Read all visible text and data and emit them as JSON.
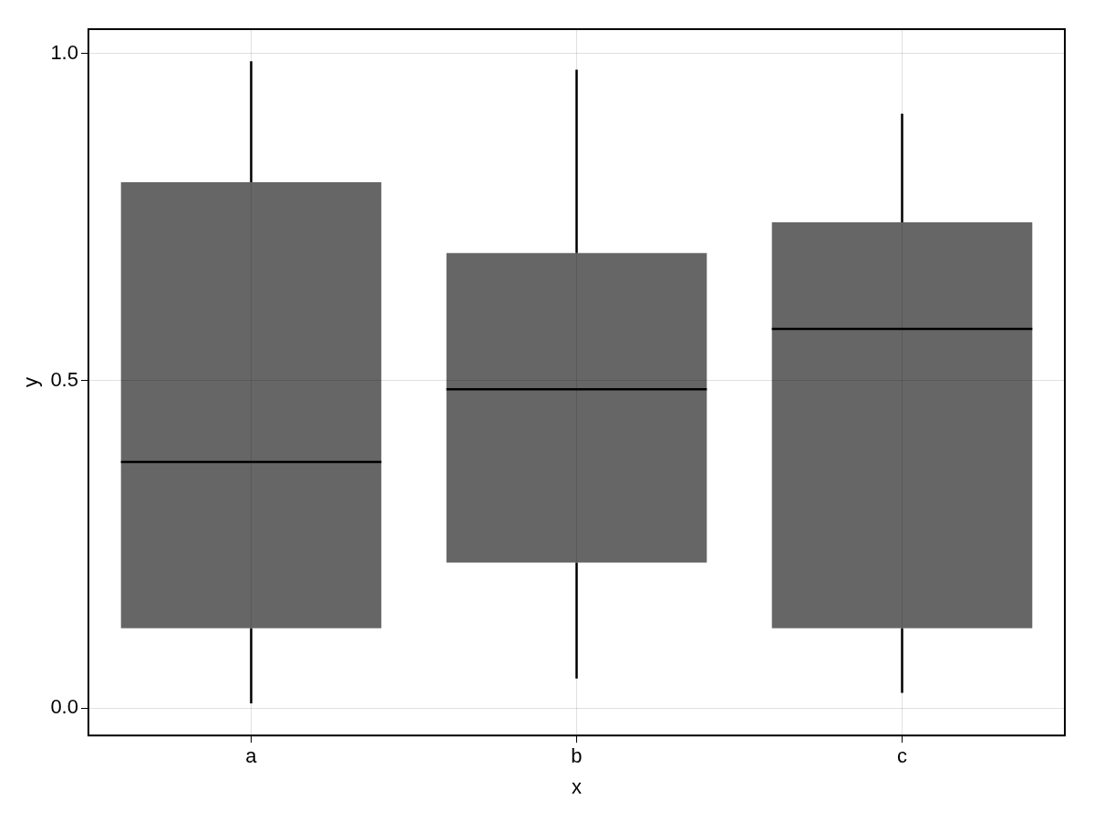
{
  "chart_data": {
    "type": "box",
    "xlabel": "x",
    "ylabel": "y",
    "categories": [
      "a",
      "b",
      "c"
    ],
    "boxes": [
      {
        "low": 0.007,
        "q1": 0.122,
        "median": 0.376,
        "q3": 0.803,
        "high": 0.988
      },
      {
        "low": 0.045,
        "q1": 0.222,
        "median": 0.487,
        "q3": 0.695,
        "high": 0.975
      },
      {
        "low": 0.023,
        "q1": 0.122,
        "median": 0.579,
        "q3": 0.742,
        "high": 0.908
      }
    ],
    "color": "#666666",
    "ylim": [
      -0.042,
      1.037
    ],
    "yticks": [
      {
        "value": 0,
        "label": "0.0"
      },
      0.5,
      {
        "value": 1,
        "label": "1.0"
      }
    ],
    "grid": true
  }
}
